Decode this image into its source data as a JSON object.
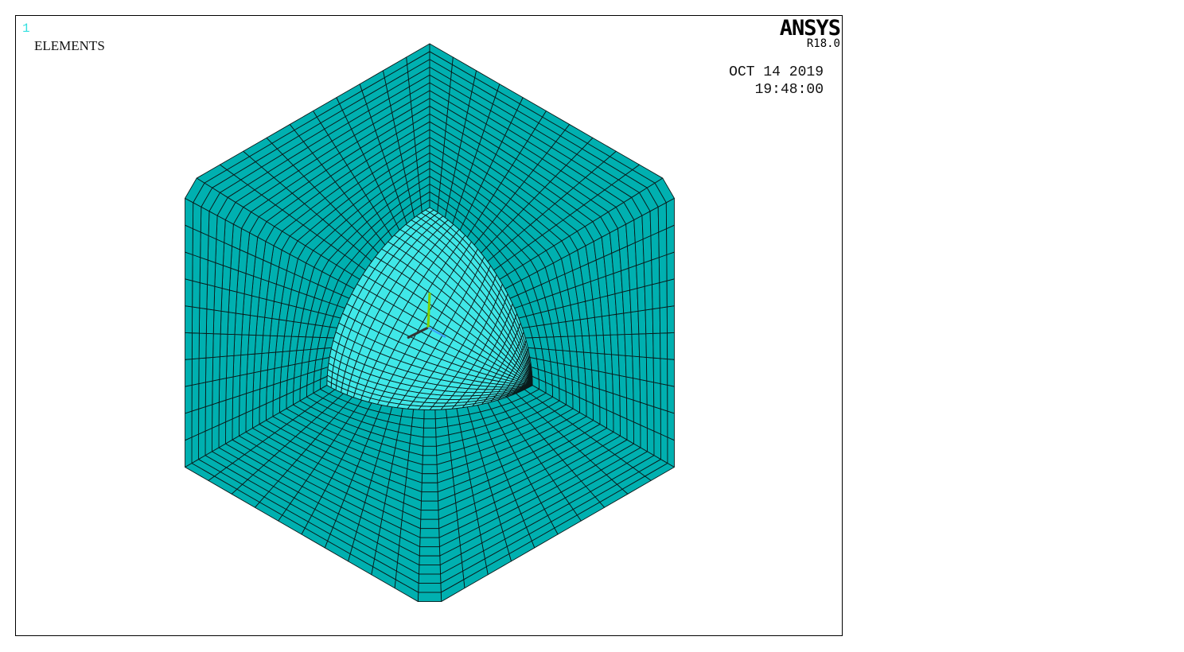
{
  "window": {
    "number": "1",
    "label": "ELEMENTS"
  },
  "brand": {
    "name": "ANSYS",
    "version": "R18.0"
  },
  "timestamp": {
    "date": "OCT 14 2019",
    "time": "19:48:00"
  },
  "colors": {
    "mesh_fill": "#00b0b0",
    "sphere_fill": "#40e8e8",
    "mesh_line": "#0a1a1a",
    "axis_x": "#333333",
    "axis_y": "#7fd000",
    "axis_z": "#3a9fff"
  },
  "mesh": {
    "outer_divisions": 21,
    "sphere_divisions": 26
  }
}
